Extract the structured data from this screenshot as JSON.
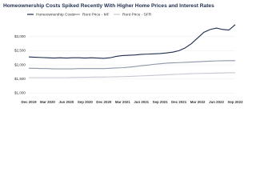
{
  "chart_data": {
    "type": "line",
    "title": "Homeownership Costs Spiked Recently With Higher Home Prices and Interest Rates",
    "categories": [
      "Dec 2019",
      null,
      null,
      "Mar 2020",
      null,
      null,
      "Jun 2020",
      null,
      null,
      "Sep 2020",
      null,
      null,
      "Dec 2020",
      null,
      null,
      "Mar 2021",
      null,
      null,
      "Jun 2021",
      null,
      null,
      "Sep 2021",
      null,
      null,
      "Dec 2021",
      null,
      null,
      "Mar 2022",
      null,
      null,
      "Jun 2022",
      null,
      null,
      "Sep 2022"
    ],
    "series": [
      {
        "name": "Homeownership Costs",
        "color": "#1f2d4e",
        "values": [
          2280,
          2270,
          2260,
          2250,
          2240,
          2250,
          2240,
          2250,
          2250,
          2240,
          2250,
          2240,
          2230,
          2250,
          2300,
          2330,
          2340,
          2350,
          2370,
          2380,
          2390,
          2400,
          2420,
          2450,
          2500,
          2600,
          2750,
          2950,
          3150,
          3250,
          3300,
          3250,
          3230,
          3420
        ]
      },
      {
        "name": "Rent Price - MF",
        "color": "#8e97a8",
        "values": [
          1880,
          1880,
          1870,
          1870,
          1860,
          1860,
          1860,
          1860,
          1870,
          1870,
          1870,
          1870,
          1870,
          1880,
          1890,
          1900,
          1920,
          1940,
          1970,
          1990,
          2020,
          2040,
          2060,
          2070,
          2080,
          2090,
          2100,
          2110,
          2120,
          2130,
          2140,
          2145,
          2150,
          2150
        ]
      },
      {
        "name": "Rent Price - SFR",
        "color": "#c4c8d0",
        "values": [
          1550,
          1550,
          1550,
          1550,
          1550,
          1550,
          1550,
          1555,
          1560,
          1560,
          1565,
          1570,
          1570,
          1575,
          1580,
          1585,
          1590,
          1600,
          1610,
          1620,
          1630,
          1640,
          1650,
          1660,
          1670,
          1680,
          1690,
          1695,
          1700,
          1705,
          1710,
          1715,
          1720,
          1720
        ]
      }
    ],
    "ylim": [
      900,
      3500
    ],
    "yticks": [
      {
        "value": 1000,
        "label": "$1,000"
      },
      {
        "value": 1500,
        "label": "$1,500"
      },
      {
        "value": 2000,
        "label": "$2,000"
      },
      {
        "value": 2500,
        "label": "$2,500"
      },
      {
        "value": 3000,
        "label": "$3,000"
      }
    ],
    "grid": true
  }
}
